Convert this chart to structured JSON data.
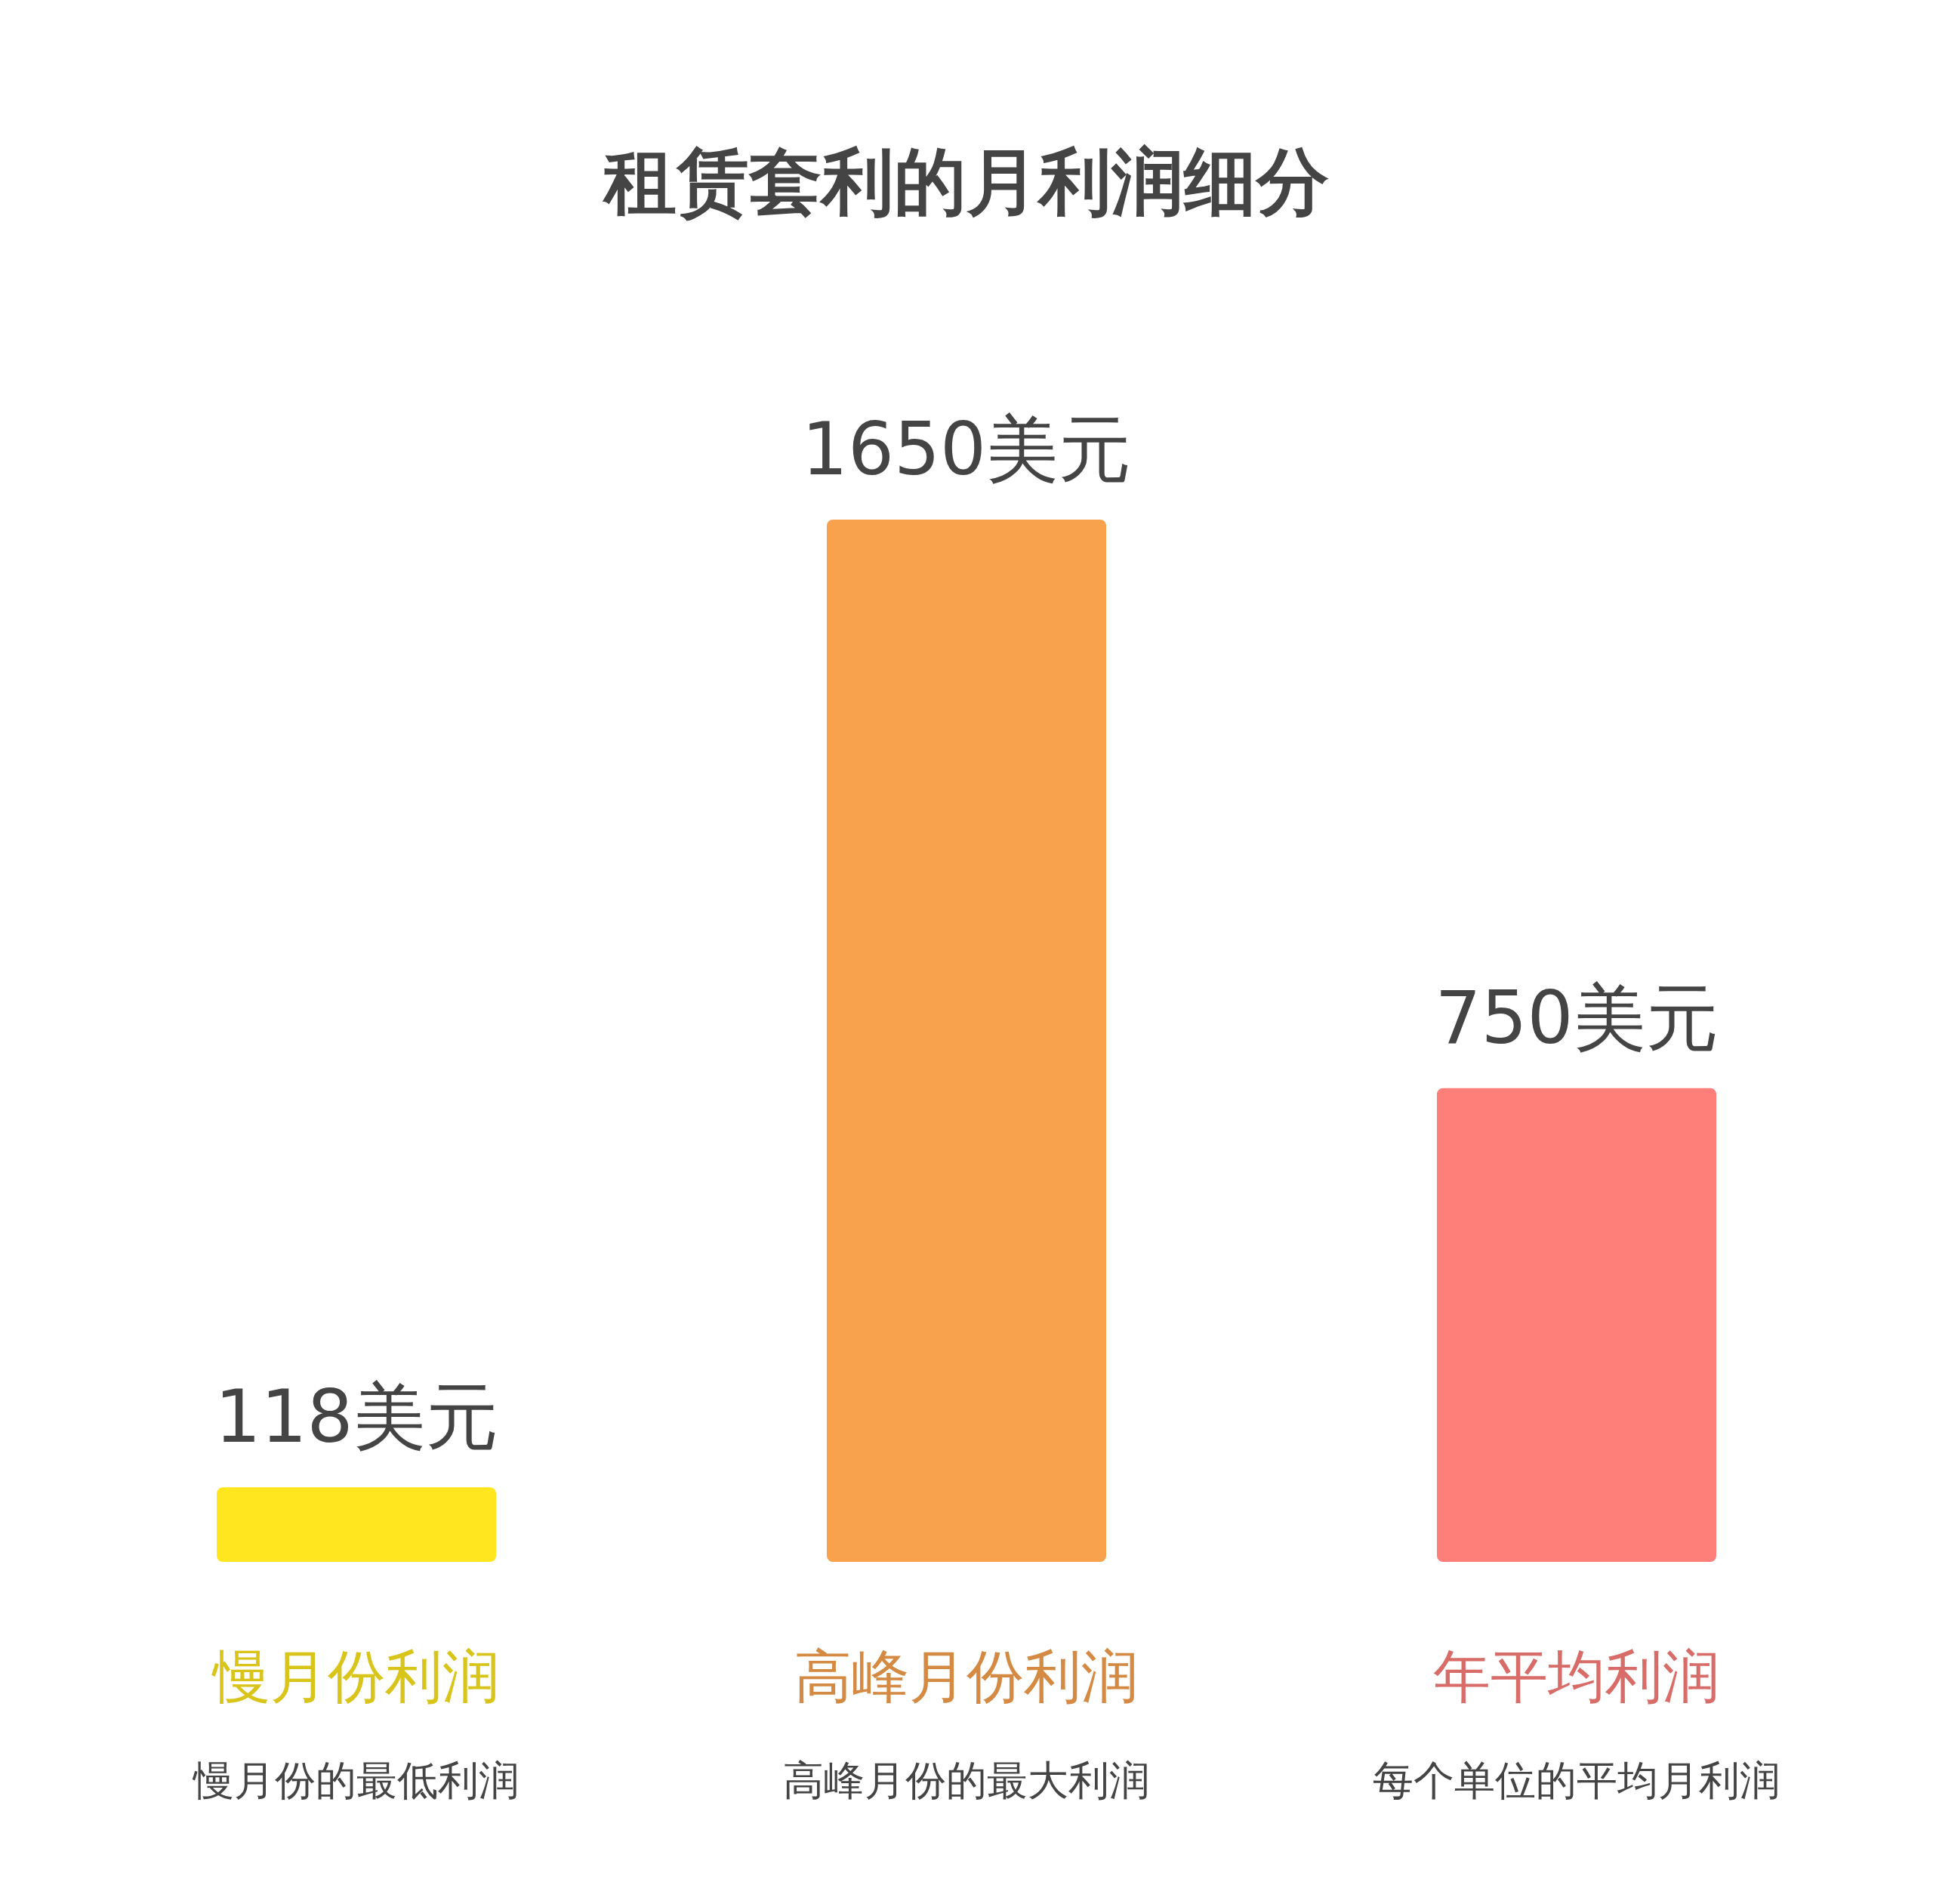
{
  "chart_data": {
    "type": "bar",
    "title": "租赁套利的月利润细分",
    "categories": [
      "慢月份利润",
      "高峰月份利润",
      "年平均利润"
    ],
    "values": [
      118,
      1650,
      750
    ],
    "colors": [
      "#ffe61e",
      "#f9a24e",
      "#fe7f7a"
    ],
    "value_labels": [
      "118美元",
      "1650美元",
      "750美元"
    ],
    "annotations": [
      "慢月份的最低利润",
      "高峰月份的最大利润",
      "每个单位的平均月利润"
    ]
  }
}
